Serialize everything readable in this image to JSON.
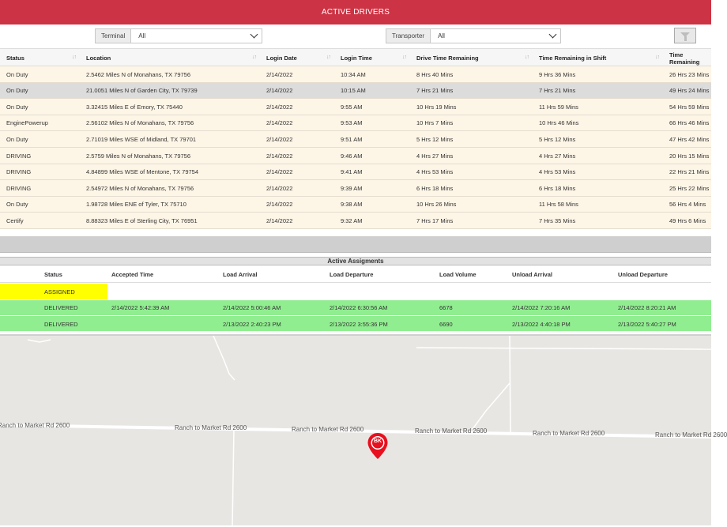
{
  "header": {
    "title": "ACTIVE DRIVERS"
  },
  "filters": {
    "terminal_label": "Terminal",
    "terminal_value": "All",
    "transporter_label": "Transporter",
    "transporter_value": "All"
  },
  "drivers_table": {
    "columns": [
      "Status",
      "Location",
      "Login Date",
      "Login Time",
      "Drive Time Remaining",
      "Time Remaining in Shift",
      "Time Remaining"
    ],
    "rows": [
      [
        "On Duty",
        "2.5462 Miles N of Monahans, TX 79756",
        "2/14/2022",
        "10:34 AM",
        "8 Hrs 40 Mins",
        "9 Hrs 36 Mins",
        "26 Hrs 23 Mins"
      ],
      [
        "On Duty",
        "21.0051 Miles N of Garden City, TX 79739",
        "2/14/2022",
        "10:15 AM",
        "7 Hrs 21 Mins",
        "7 Hrs 21 Mins",
        "49 Hrs 24 Mins"
      ],
      [
        "On Duty",
        "3.32415 Miles E of Emory, TX 75440",
        "2/14/2022",
        "9:55 AM",
        "10 Hrs 19 Mins",
        "11 Hrs 59 Mins",
        "54 Hrs 59 Mins"
      ],
      [
        "EnginePowerup",
        "2.56102 Miles N of Monahans, TX 79756",
        "2/14/2022",
        "9:53 AM",
        "10 Hrs 7 Mins",
        "10 Hrs 46 Mins",
        "66 Hrs 46 Mins"
      ],
      [
        "On Duty",
        "2.71019 Miles WSE of Midland, TX 79701",
        "2/14/2022",
        "9:51 AM",
        "5 Hrs 12 Mins",
        "5 Hrs 12 Mins",
        "47 Hrs 42 Mins"
      ],
      [
        "DRIVING",
        "2.5759 Miles N of Monahans, TX 79756",
        "2/14/2022",
        "9:46 AM",
        "4 Hrs 27 Mins",
        "4 Hrs 27 Mins",
        "20 Hrs 15 Mins"
      ],
      [
        "DRIVING",
        "4.84899 Miles WSE of Mentone, TX 79754",
        "2/14/2022",
        "9:41 AM",
        "4 Hrs 53 Mins",
        "4 Hrs 53 Mins",
        "22 Hrs 21 Mins"
      ],
      [
        "DRIVING",
        "2.54972 Miles N of Monahans, TX 79756",
        "2/14/2022",
        "9:39 AM",
        "6 Hrs 18 Mins",
        "6 Hrs 18 Mins",
        "25 Hrs 22 Mins"
      ],
      [
        "On Duty",
        "1.98728 Miles ENE of Tyler, TX 75710",
        "2/14/2022",
        "9:38 AM",
        "10 Hrs 26 Mins",
        "11 Hrs 58 Mins",
        "56 Hrs 4 Mins"
      ],
      [
        "Certify",
        "8.88323 Miles E of Sterling City, TX 76951",
        "2/14/2022",
        "9:32 AM",
        "7 Hrs 17 Mins",
        "7 Hrs 35 Mins",
        "49 Hrs 6 Mins"
      ]
    ]
  },
  "assignments": {
    "title": "Active Assigments",
    "columns": [
      "Status",
      "Accepted Time",
      "Load Arrival",
      "Load Departure",
      "Load Volume",
      "Unload Arrival",
      "Unload Departure"
    ],
    "rows": [
      [
        "ASSIGNED",
        "",
        "",
        "",
        "",
        "",
        ""
      ],
      [
        "DELIVERED",
        "2/14/2022 5:42:39 AM",
        "2/14/2022 5:00:46 AM",
        "2/14/2022 6:30:56 AM",
        "6678",
        "2/14/2022 7:20:16 AM",
        "2/14/2022 8:20:21 AM"
      ],
      [
        "DELIVERED",
        "",
        "2/13/2022 2:40:23 PM",
        "2/13/2022 3:55:36 PM",
        "6690",
        "2/13/2022 4:40:18 PM",
        "2/13/2022 5:40:27 PM"
      ]
    ]
  },
  "map": {
    "road_labels": [
      "Ranch to Market Rd 2600",
      "Ranch to Market Rd 2600",
      "Ranch to Market Rd 2600",
      "Ranch to Market Rd 2600",
      "Ranch to Market Rd 2600",
      "Ranch to Market Rd 2600"
    ],
    "marker_label": "BK"
  },
  "colors": {
    "header_red": "#cc3344",
    "row_cream": "#fdf5e6",
    "row_selected": "#dcdcdc",
    "assigned_yellow": "#ffff00",
    "delivered_green": "#90ee90",
    "marker_red": "#e8101f"
  }
}
